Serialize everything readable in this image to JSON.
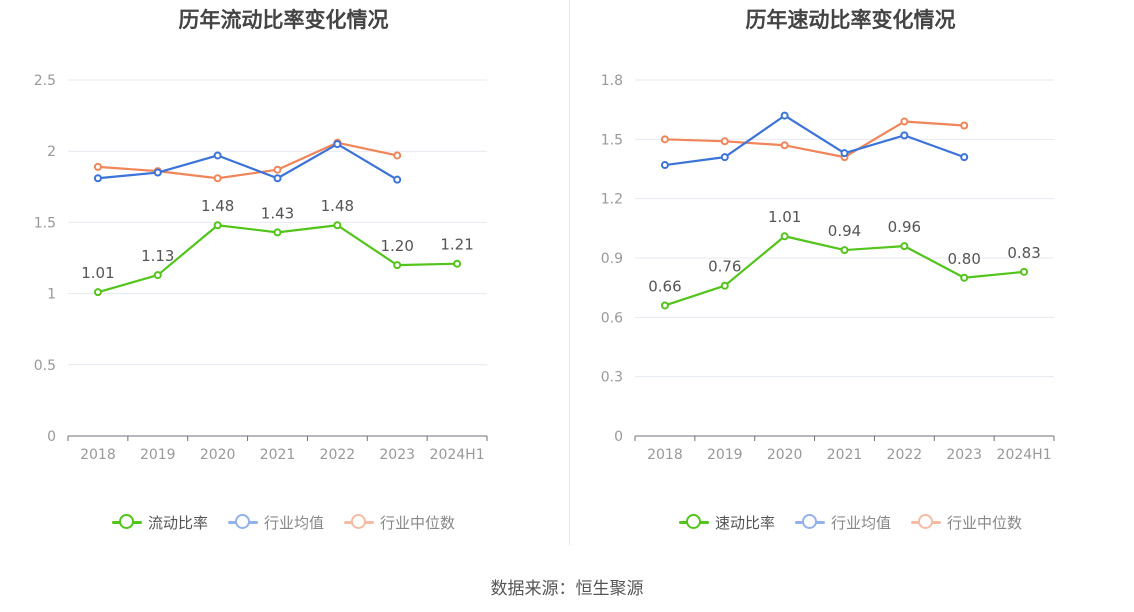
{
  "source": "数据来源：恒生聚源",
  "colors": {
    "primary": "#52c41a",
    "avg": "#3b73d9",
    "median": "#f0855a"
  },
  "chart_data": [
    {
      "type": "line",
      "title": "历年流动比率变化情况",
      "categories": [
        "2018",
        "2019",
        "2020",
        "2021",
        "2022",
        "2023",
        "2024H1"
      ],
      "ylim": [
        0,
        2.5
      ],
      "yticks": [
        "0",
        "0.5",
        "1",
        "1.5",
        "2",
        "2.5"
      ],
      "ytick_values": [
        0,
        0.5,
        1,
        1.5,
        2,
        2.5
      ],
      "grid": true,
      "legend_position": "bottom",
      "series": [
        {
          "name": "流动比率",
          "values": [
            1.01,
            1.13,
            1.48,
            1.43,
            1.48,
            1.2,
            1.21
          ],
          "labels": [
            "1.01",
            "1.13",
            "1.48",
            "1.43",
            "1.48",
            "1.20",
            "1.21"
          ]
        },
        {
          "name": "行业均值",
          "values": [
            1.81,
            1.85,
            1.97,
            1.81,
            2.05,
            1.8,
            null
          ]
        },
        {
          "name": "行业中位数",
          "values": [
            1.89,
            1.86,
            1.81,
            1.87,
            2.06,
            1.97,
            null
          ]
        }
      ]
    },
    {
      "type": "line",
      "title": "历年速动比率变化情况",
      "categories": [
        "2018",
        "2019",
        "2020",
        "2021",
        "2022",
        "2023",
        "2024H1"
      ],
      "ylim": [
        0,
        1.8
      ],
      "yticks": [
        "0",
        "0.3",
        "0.6",
        "0.9",
        "1.2",
        "1.5",
        "1.8"
      ],
      "ytick_values": [
        0,
        0.3,
        0.6,
        0.9,
        1.2,
        1.5,
        1.8
      ],
      "grid": true,
      "legend_position": "bottom",
      "series": [
        {
          "name": "速动比率",
          "values": [
            0.66,
            0.76,
            1.01,
            0.94,
            0.96,
            0.8,
            0.83
          ],
          "labels": [
            "0.66",
            "0.76",
            "1.01",
            "0.94",
            "0.96",
            "0.80",
            "0.83"
          ]
        },
        {
          "name": "行业均值",
          "values": [
            1.37,
            1.41,
            1.62,
            1.43,
            1.52,
            1.41,
            null
          ]
        },
        {
          "name": "行业中位数",
          "values": [
            1.5,
            1.49,
            1.47,
            1.41,
            1.59,
            1.57,
            null
          ]
        }
      ]
    }
  ]
}
